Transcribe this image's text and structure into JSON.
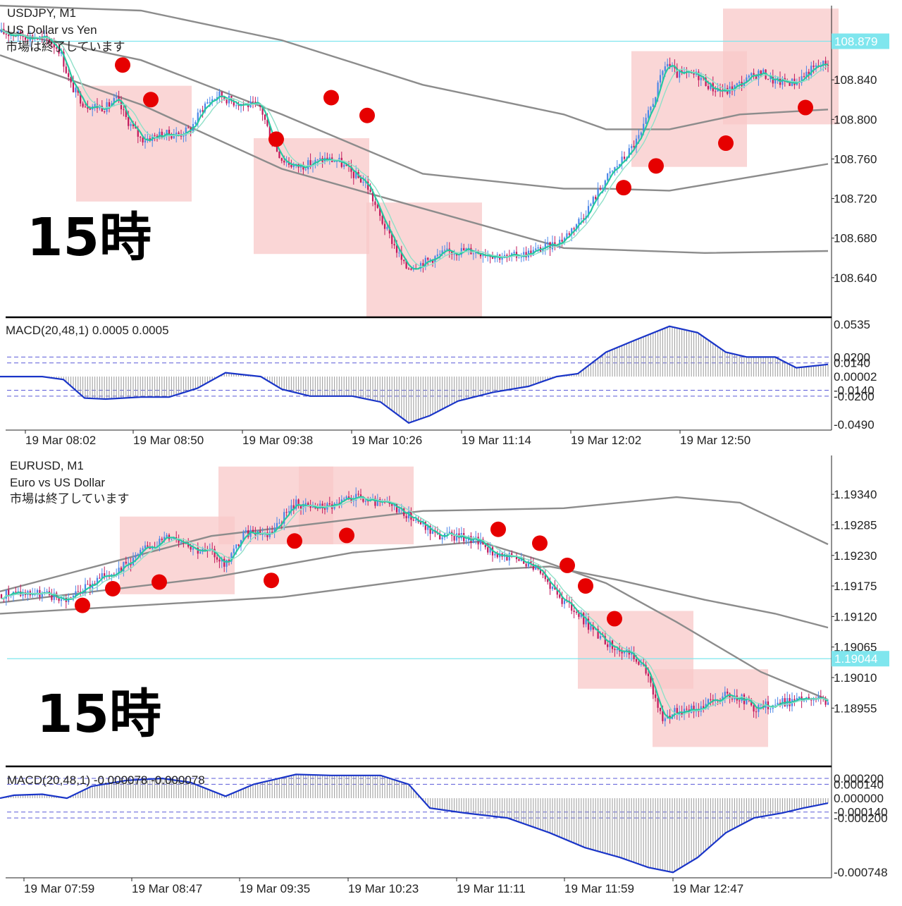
{
  "colors": {
    "background": "#ffffff",
    "bull_candle": "#4a86e8",
    "bear_candle": "#c2185b",
    "ma_fast": "#26c8a0",
    "ma_slow": "#8fe0c8",
    "bands": "#8c8c8c",
    "price_line": "#7fe6ee",
    "price_tag": "#7fe6ee",
    "zone_fill": "#f8c8c8",
    "dot": "#e60000",
    "macd_line": "#1a35c8",
    "macd_hist": "#9a9a9a",
    "level_line": "#5a5ad8"
  },
  "chart_data": [
    {
      "id": "usdjpy",
      "type": "candlestick",
      "symbol": "USDJPY, M1",
      "description": "US Dollar vs Yen",
      "status": "市場は終了しています",
      "annotation": "15時",
      "current_price": "108.879",
      "ylim": [
        108.6,
        108.915
      ],
      "y_ticks": [
        "108.640",
        "108.680",
        "108.720",
        "108.760",
        "108.800",
        "108.840"
      ],
      "x_ticks": [
        "19 Mar 08:02",
        "19 Mar 08:50",
        "19 Mar 09:38",
        "19 Mar 10:26",
        "19 Mar 11:14",
        "19 Mar 12:02",
        "19 Mar 12:50"
      ],
      "price_path": [
        [
          0,
          108.888
        ],
        [
          20,
          108.886
        ],
        [
          50,
          108.883
        ],
        [
          70,
          108.88
        ],
        [
          85,
          108.87
        ],
        [
          100,
          108.835
        ],
        [
          120,
          108.815
        ],
        [
          150,
          108.812
        ],
        [
          165,
          108.82
        ],
        [
          180,
          108.8
        ],
        [
          200,
          108.78
        ],
        [
          215,
          108.782
        ],
        [
          230,
          108.785
        ],
        [
          255,
          108.785
        ],
        [
          270,
          108.79
        ],
        [
          290,
          108.815
        ],
        [
          310,
          108.825
        ],
        [
          330,
          108.818
        ],
        [
          350,
          108.815
        ],
        [
          370,
          108.812
        ],
        [
          385,
          108.78
        ],
        [
          400,
          108.76
        ],
        [
          420,
          108.752
        ],
        [
          440,
          108.755
        ],
        [
          460,
          108.76
        ],
        [
          480,
          108.758
        ],
        [
          500,
          108.745
        ],
        [
          520,
          108.735
        ],
        [
          540,
          108.7
        ],
        [
          560,
          108.672
        ],
        [
          575,
          108.65
        ],
        [
          600,
          108.655
        ],
        [
          630,
          108.665
        ],
        [
          660,
          108.668
        ],
        [
          690,
          108.665
        ],
        [
          720,
          108.66
        ],
        [
          750,
          108.665
        ],
        [
          780,
          108.672
        ],
        [
          800,
          108.68
        ],
        [
          830,
          108.705
        ],
        [
          860,
          108.74
        ],
        [
          890,
          108.765
        ],
        [
          910,
          108.785
        ],
        [
          930,
          108.825
        ],
        [
          945,
          108.858
        ],
        [
          960,
          108.845
        ],
        [
          990,
          108.845
        ],
        [
          1010,
          108.832
        ],
        [
          1030,
          108.828
        ],
        [
          1060,
          108.84
        ],
        [
          1080,
          108.848
        ],
        [
          1100,
          108.838
        ],
        [
          1130,
          108.838
        ],
        [
          1150,
          108.85
        ],
        [
          1175,
          108.858
        ]
      ],
      "bands": [
        [
          [
            0,
            108.915
          ],
          [
            200,
            108.91
          ],
          [
            400,
            108.88
          ],
          [
            600,
            108.835
          ],
          [
            800,
            108.805
          ],
          [
            860,
            108.79
          ],
          [
            950,
            108.79
          ],
          [
            1050,
            108.805
          ],
          [
            1175,
            108.81
          ]
        ],
        [
          [
            0,
            108.89
          ],
          [
            200,
            108.86
          ],
          [
            400,
            108.805
          ],
          [
            600,
            108.745
          ],
          [
            800,
            108.73
          ],
          [
            860,
            108.73
          ],
          [
            950,
            108.728
          ],
          [
            1050,
            108.74
          ],
          [
            1175,
            108.755
          ]
        ],
        [
          [
            0,
            108.865
          ],
          [
            200,
            108.815
          ],
          [
            400,
            108.75
          ],
          [
            600,
            108.71
          ],
          [
            800,
            108.67
          ],
          [
            1000,
            108.665
          ],
          [
            1175,
            108.667
          ]
        ]
      ],
      "zones": [
        {
          "t0": 108,
          "t1": 272,
          "p0": 108.834,
          "p1": 108.717
        },
        {
          "t0": 360,
          "t1": 524,
          "p0": 108.781,
          "p1": 108.664
        },
        {
          "t0": 520,
          "t1": 684,
          "p0": 108.716,
          "p1": 108.6
        },
        {
          "t0": 896,
          "t1": 1060,
          "p0": 108.869,
          "p1": 108.752
        },
        {
          "t0": 1026,
          "t1": 1190,
          "p0": 108.912,
          "p1": 108.795
        }
      ],
      "dots": [
        {
          "t": 174,
          "p": 108.855
        },
        {
          "t": 214,
          "p": 108.82
        },
        {
          "t": 392,
          "p": 108.78
        },
        {
          "t": 470,
          "p": 108.822
        },
        {
          "t": 521,
          "p": 108.804
        },
        {
          "t": 885,
          "p": 108.731
        },
        {
          "t": 931,
          "p": 108.753
        },
        {
          "t": 1030,
          "p": 108.776
        },
        {
          "t": 1143,
          "p": 108.812
        }
      ],
      "macd": {
        "label": "MACD(20,48,1) 0.0005 0.0005",
        "ylim": [
          -0.049,
          0.0535
        ],
        "y_ticks": [
          "0.0535",
          "0.0200",
          "0.0140",
          "0.00002",
          "-0.0140",
          "-0.0200",
          "-0.0490"
        ],
        "levels": [
          0.02,
          0.014,
          -0.014,
          -0.02
        ],
        "path": [
          [
            0,
            0.0
          ],
          [
            60,
            0.0
          ],
          [
            90,
            -0.003
          ],
          [
            120,
            -0.022
          ],
          [
            150,
            -0.023
          ],
          [
            200,
            -0.021
          ],
          [
            240,
            -0.021
          ],
          [
            280,
            -0.012
          ],
          [
            320,
            0.004
          ],
          [
            370,
            0.0
          ],
          [
            400,
            -0.013
          ],
          [
            440,
            -0.02
          ],
          [
            500,
            -0.02
          ],
          [
            540,
            -0.026
          ],
          [
            580,
            -0.0475
          ],
          [
            610,
            -0.04
          ],
          [
            650,
            -0.025
          ],
          [
            700,
            -0.016
          ],
          [
            750,
            -0.01
          ],
          [
            790,
            0.0
          ],
          [
            820,
            0.003
          ],
          [
            860,
            0.025
          ],
          [
            900,
            0.037
          ],
          [
            950,
            0.0515
          ],
          [
            990,
            0.045
          ],
          [
            1030,
            0.025
          ],
          [
            1060,
            0.02
          ],
          [
            1100,
            0.02
          ],
          [
            1130,
            0.009
          ],
          [
            1175,
            0.0125
          ]
        ]
      }
    },
    {
      "id": "eurusd",
      "type": "candlestick",
      "symbol": "EURUSD, M1",
      "description": "Euro vs US Dollar",
      "status": "市場は終了しています",
      "annotation": "15時",
      "current_price": "1.19044",
      "ylim": [
        1.1885,
        1.1941
      ],
      "y_ticks": [
        "1.19340",
        "1.19285",
        "1.19230",
        "1.19175",
        "1.19120",
        "1.19065",
        "1.19010",
        "1.18955"
      ],
      "x_ticks": [
        "19 Mar 07:59",
        "19 Mar 08:47",
        "19 Mar 09:35",
        "19 Mar 10:23",
        "19 Mar 11:11",
        "19 Mar 11:59",
        "19 Mar 12:47"
      ],
      "price_path": [
        [
          0,
          1.1916
        ],
        [
          40,
          1.19162
        ],
        [
          60,
          1.1916
        ],
        [
          95,
          1.1915
        ],
        [
          120,
          1.1917
        ],
        [
          150,
          1.19195
        ],
        [
          180,
          1.19215
        ],
        [
          210,
          1.19245
        ],
        [
          240,
          1.19265
        ],
        [
          260,
          1.19258
        ],
        [
          280,
          1.1924
        ],
        [
          300,
          1.19235
        ],
        [
          320,
          1.19215
        ],
        [
          345,
          1.19265
        ],
        [
          360,
          1.19275
        ],
        [
          380,
          1.19268
        ],
        [
          400,
          1.19295
        ],
        [
          420,
          1.19325
        ],
        [
          440,
          1.19315
        ],
        [
          460,
          1.19318
        ],
        [
          480,
          1.1932
        ],
        [
          500,
          1.19335
        ],
        [
          530,
          1.19325
        ],
        [
          560,
          1.19318
        ],
        [
          590,
          1.19295
        ],
        [
          620,
          1.19265
        ],
        [
          650,
          1.19265
        ],
        [
          680,
          1.19255
        ],
        [
          700,
          1.19235
        ],
        [
          730,
          1.19225
        ],
        [
          760,
          1.1921
        ],
        [
          780,
          1.19175
        ],
        [
          800,
          1.19145
        ],
        [
          820,
          1.19125
        ],
        [
          840,
          1.19095
        ],
        [
          860,
          1.19075
        ],
        [
          880,
          1.1906
        ],
        [
          900,
          1.19045
        ],
        [
          920,
          1.19015
        ],
        [
          940,
          1.18935
        ],
        [
          960,
          1.1895
        ],
        [
          990,
          1.18955
        ],
        [
          1010,
          1.18968
        ],
        [
          1030,
          1.18978
        ],
        [
          1050,
          1.18975
        ],
        [
          1070,
          1.18955
        ],
        [
          1090,
          1.1896
        ],
        [
          1110,
          1.18965
        ],
        [
          1140,
          1.1897
        ],
        [
          1175,
          1.18967
        ]
      ],
      "bands": [
        [
          [
            0,
            1.19165
          ],
          [
            300,
            1.19265
          ],
          [
            600,
            1.1931
          ],
          [
            800,
            1.19315
          ],
          [
            960,
            1.19335
          ],
          [
            1050,
            1.19325
          ],
          [
            1175,
            1.1925
          ]
        ],
        [
          [
            0,
            1.19145
          ],
          [
            300,
            1.1919
          ],
          [
            500,
            1.19235
          ],
          [
            680,
            1.19255
          ],
          [
            770,
            1.1922
          ],
          [
            860,
            1.1918
          ],
          [
            960,
            1.1911
          ],
          [
            1080,
            1.1902
          ],
          [
            1175,
            1.1897
          ]
        ],
        [
          [
            0,
            1.19125
          ],
          [
            200,
            1.1914
          ],
          [
            400,
            1.19155
          ],
          [
            550,
            1.1918
          ],
          [
            700,
            1.19205
          ],
          [
            780,
            1.1921
          ],
          [
            880,
            1.19185
          ],
          [
            1000,
            1.1915
          ],
          [
            1100,
            1.19125
          ],
          [
            1175,
            1.191
          ]
        ]
      ],
      "zones": [
        {
          "t0": 170,
          "t1": 333,
          "p0": 1.193,
          "p1": 1.1916
        },
        {
          "t0": 310,
          "t1": 473,
          "p0": 1.1939,
          "p1": 1.1925
        },
        {
          "t0": 424,
          "t1": 587,
          "p0": 1.1939,
          "p1": 1.1925
        },
        {
          "t0": 820,
          "t1": 984,
          "p0": 1.1913,
          "p1": 1.1899
        },
        {
          "t0": 926,
          "t1": 1090,
          "p0": 1.19025,
          "p1": 1.18885
        }
      ],
      "dots": [
        {
          "t": 117,
          "p": 1.1914
        },
        {
          "t": 160,
          "p": 1.1917
        },
        {
          "t": 226,
          "p": 1.19182
        },
        {
          "t": 385,
          "p": 1.19185
        },
        {
          "t": 418,
          "p": 1.19256
        },
        {
          "t": 492,
          "p": 1.19266
        },
        {
          "t": 707,
          "p": 1.19277
        },
        {
          "t": 766,
          "p": 1.19252
        },
        {
          "t": 805,
          "p": 1.19212
        },
        {
          "t": 831,
          "p": 1.19175
        },
        {
          "t": 872,
          "p": 1.19116
        }
      ],
      "macd": {
        "label": "MACD(20,48,1) -0.000078 -0.000078",
        "ylim": [
          -0.000748,
          0.00025
        ],
        "y_ticks": [
          "0.000200",
          "0.000140",
          "0.000000",
          "-0.000140",
          "-0.000200",
          "-0.000748"
        ],
        "levels": [
          0.0002,
          0.00014,
          -0.00014,
          -0.0002
        ],
        "path": [
          [
            0,
            0.0
          ],
          [
            20,
            3e-05
          ],
          [
            60,
            4e-05
          ],
          [
            95,
            0.0
          ],
          [
            130,
            0.00012
          ],
          [
            180,
            0.00018
          ],
          [
            230,
            0.0002
          ],
          [
            270,
            0.00016
          ],
          [
            320,
            2e-05
          ],
          [
            360,
            0.00014
          ],
          [
            420,
            0.00024
          ],
          [
            470,
            0.00023
          ],
          [
            540,
            0.00023
          ],
          [
            580,
            0.00014
          ],
          [
            610,
            -0.0001
          ],
          [
            660,
            -0.00015
          ],
          [
            720,
            -0.0002
          ],
          [
            780,
            -0.00035
          ],
          [
            830,
            -0.0005
          ],
          [
            880,
            -0.0006
          ],
          [
            920,
            -0.0007
          ],
          [
            955,
            -0.00075
          ],
          [
            990,
            -0.0006
          ],
          [
            1030,
            -0.00035
          ],
          [
            1070,
            -0.0002
          ],
          [
            1110,
            -0.00015
          ],
          [
            1140,
            -0.0001
          ],
          [
            1175,
            -5e-05
          ]
        ]
      }
    }
  ]
}
